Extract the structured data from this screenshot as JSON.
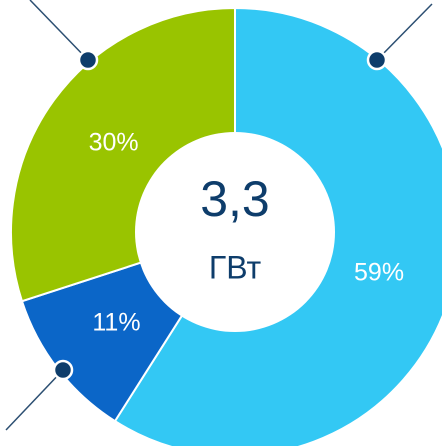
{
  "chart_data": {
    "type": "donut",
    "values": [
      59,
      11,
      30
    ],
    "value_labels": [
      "59%",
      "11%",
      "30%"
    ],
    "colors": [
      "#33c8f4",
      "#0b66c8",
      "#99c400"
    ],
    "center_text": "3,3",
    "center_unit": "ГВт"
  }
}
